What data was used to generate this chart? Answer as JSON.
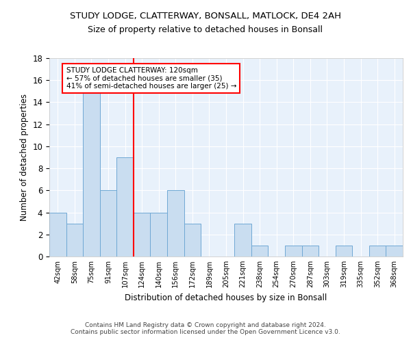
{
  "title1": "STUDY LODGE, CLATTERWAY, BONSALL, MATLOCK, DE4 2AH",
  "title2": "Size of property relative to detached houses in Bonsall",
  "xlabel": "Distribution of detached houses by size in Bonsall",
  "ylabel": "Number of detached properties",
  "categories": [
    "42sqm",
    "58sqm",
    "75sqm",
    "91sqm",
    "107sqm",
    "124sqm",
    "140sqm",
    "156sqm",
    "172sqm",
    "189sqm",
    "205sqm",
    "221sqm",
    "238sqm",
    "254sqm",
    "270sqm",
    "287sqm",
    "303sqm",
    "319sqm",
    "335sqm",
    "352sqm",
    "368sqm"
  ],
  "values": [
    4,
    3,
    15,
    6,
    9,
    4,
    4,
    6,
    3,
    0,
    0,
    3,
    1,
    0,
    1,
    1,
    0,
    1,
    0,
    1,
    1
  ],
  "bar_color": "#c9ddf0",
  "bar_edge_color": "#6fa8d4",
  "highlight_color": "#ff0000",
  "ylim": [
    0,
    18
  ],
  "yticks": [
    0,
    2,
    4,
    6,
    8,
    10,
    12,
    14,
    16,
    18
  ],
  "annotation_box_text": "STUDY LODGE CLATTERWAY: 120sqm\n← 57% of detached houses are smaller (35)\n41% of semi-detached houses are larger (25) →",
  "annotation_box_color": "#ffffff",
  "annotation_box_edge_color": "#ff0000",
  "footer_text": "Contains HM Land Registry data © Crown copyright and database right 2024.\nContains public sector information licensed under the Open Government Licence v3.0.",
  "vline_position": 4.5,
  "background_color": "#e8f1fb",
  "grid_color": "#ffffff",
  "spine_color": "#c0c0c0"
}
